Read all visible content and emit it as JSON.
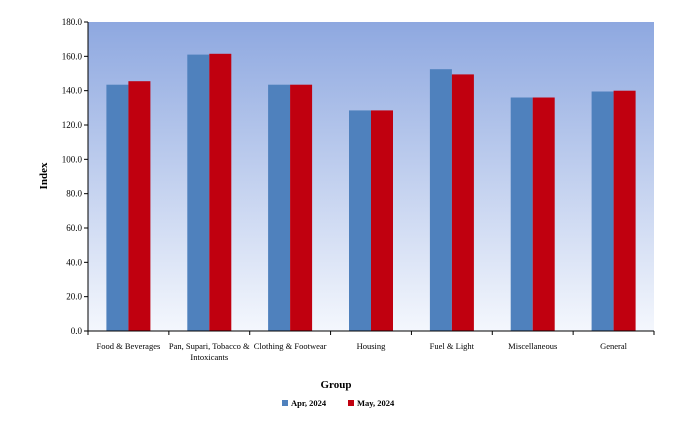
{
  "chart_data": {
    "type": "bar",
    "title": "",
    "xlabel": "Group",
    "ylabel": "Index",
    "ylim": [
      0,
      180
    ],
    "y_ticks": [
      "0.0",
      "20.0",
      "40.0",
      "60.0",
      "80.0",
      "100.0",
      "120.0",
      "140.0",
      "160.0",
      "180.0"
    ],
    "y_tick_values": [
      0,
      20,
      40,
      60,
      80,
      100,
      120,
      140,
      160,
      180
    ],
    "categories": [
      [
        "Food & Beverages"
      ],
      [
        "Pan, Supari, Tobacco &",
        "Intoxicants"
      ],
      [
        "Clothing & Footwear"
      ],
      [
        "Housing"
      ],
      [
        "Fuel & Light"
      ],
      [
        "Miscellaneous"
      ],
      [
        "General"
      ]
    ],
    "series": [
      {
        "name": "Apr, 2024",
        "color": "#4f81bd",
        "values": [
          143.5,
          161.0,
          143.5,
          128.5,
          152.5,
          136.0,
          139.5
        ]
      },
      {
        "name": "May, 2024",
        "color": "#c0000f",
        "values": [
          145.5,
          161.5,
          143.5,
          128.5,
          149.5,
          136.0,
          140.0
        ]
      }
    ],
    "legend_position": "bottom",
    "grid": false,
    "plot_background": "gradient light-blue"
  }
}
